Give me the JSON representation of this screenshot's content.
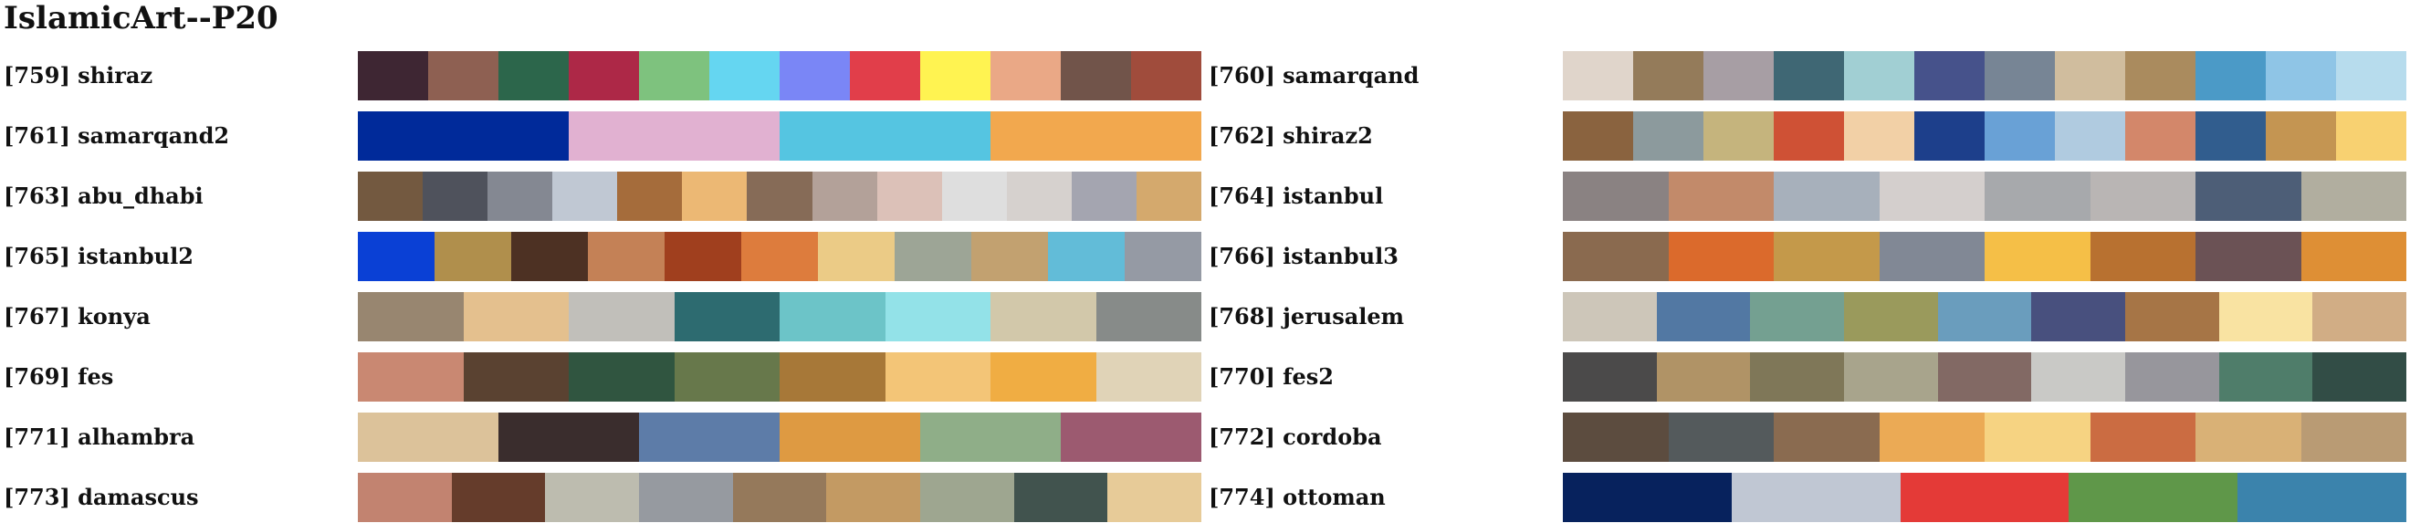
{
  "title": "IslamicArt--P20",
  "palettes": [
    {
      "label": "[759] shiraz",
      "colors": [
        "#3e2633",
        "#8e6052",
        "#2c664b",
        "#ad2847",
        "#7ec27e",
        "#65d6f1",
        "#7a86f6",
        "#e13e4a",
        "#fff351",
        "#eaa886",
        "#71544a",
        "#a04c3c"
      ]
    },
    {
      "label": "[760] samarqand",
      "colors": [
        "#e0d5cb",
        "#947b5a",
        "#a79ea4",
        "#3f6774",
        "#a1cfd3",
        "#46528b",
        "#778595",
        "#d0bd9e",
        "#aa8b5e",
        "#4b9ac7",
        "#8fc5e6",
        "#b7dced"
      ]
    },
    {
      "label": "[761] samarqand2",
      "colors": [
        "#002a9a",
        "#e1b1d1",
        "#55c5e1",
        "#f2a84e"
      ]
    },
    {
      "label": "[762] shiraz2",
      "colors": [
        "#8a633f",
        "#8c9a9d",
        "#c5b47d",
        "#cf5135",
        "#f2d0a6",
        "#1d3f8b",
        "#69a1d6",
        "#b0cbe0",
        "#d3876a",
        "#315d8e",
        "#c49552",
        "#f8d171"
      ]
    },
    {
      "label": "[763] abu_dhabi",
      "colors": [
        "#735940",
        "#4f525c",
        "#848892",
        "#c0c8d3",
        "#a56c3b",
        "#ecb874",
        "#866b57",
        "#b3a199",
        "#dcc1b8",
        "#dedede",
        "#d6d1ce",
        "#a4a5b0",
        "#d4a96d"
      ]
    },
    {
      "label": "[764] istanbul",
      "colors": [
        "#8a8282",
        "#c28a6a",
        "#a7b0bb",
        "#d4cfcd",
        "#a7a9ac",
        "#b9b5b4",
        "#4d5e77",
        "#b1ae9f"
      ]
    },
    {
      "label": "[765] istanbul2",
      "colors": [
        "#0a40d5",
        "#b08f4c",
        "#4d3123",
        "#c48156",
        "#a03f1e",
        "#dd7c3d",
        "#ebcb86",
        "#9da596",
        "#c2a170",
        "#62bcd8",
        "#959aa4"
      ]
    },
    {
      "label": "[766] istanbul3",
      "colors": [
        "#8a6a4f",
        "#db6a2c",
        "#c4994a",
        "#818895",
        "#f5bf47",
        "#b87130",
        "#6b5255",
        "#de8f35"
      ]
    },
    {
      "label": "[767] konya",
      "colors": [
        "#988670",
        "#e4c08e",
        "#c1bfba",
        "#2d6b70",
        "#6cc4c8",
        "#93e2e8",
        "#d2c8aa",
        "#878b89"
      ]
    },
    {
      "label": "[768] jerusalem",
      "colors": [
        "#cdc6b9",
        "#5278a3",
        "#74a091",
        "#9a9a5c",
        "#6a9dbd",
        "#48507e",
        "#a67546",
        "#f9e3a2",
        "#d1ad85"
      ]
    },
    {
      "label": "[769] fes",
      "colors": [
        "#c98872",
        "#5a4231",
        "#305540",
        "#67784b",
        "#a77838",
        "#f3c577",
        "#f0ad43",
        "#e0d3b7"
      ]
    },
    {
      "label": "[770] fes2",
      "colors": [
        "#4b4a4a",
        "#b09366",
        "#7f7758",
        "#a8a48c",
        "#826964",
        "#c9c9c6",
        "#97969c",
        "#4f7d6a",
        "#324d46"
      ]
    },
    {
      "label": "[771] alhambra",
      "colors": [
        "#dcc29a",
        "#3a2d2d",
        "#5d7ca8",
        "#de9a42",
        "#8fae88",
        "#9c5a70"
      ]
    },
    {
      "label": "[772] cordoba",
      "colors": [
        "#5c4c3f",
        "#545a5c",
        "#8a6b50",
        "#ebaa55",
        "#f6d382",
        "#cb6c42",
        "#d9b176",
        "#b99b74"
      ]
    },
    {
      "label": "[773] damascus",
      "colors": [
        "#c28370",
        "#653c2b",
        "#bdbcaf",
        "#969aa0",
        "#95795b",
        "#c39a63",
        "#9ea690",
        "#41534e",
        "#e7cb98"
      ]
    },
    {
      "label": "[774] ottoman",
      "colors": [
        "#07225d",
        "#c0c7d3",
        "#e43a37",
        "#5f9749",
        "#3b83ac"
      ]
    }
  ]
}
